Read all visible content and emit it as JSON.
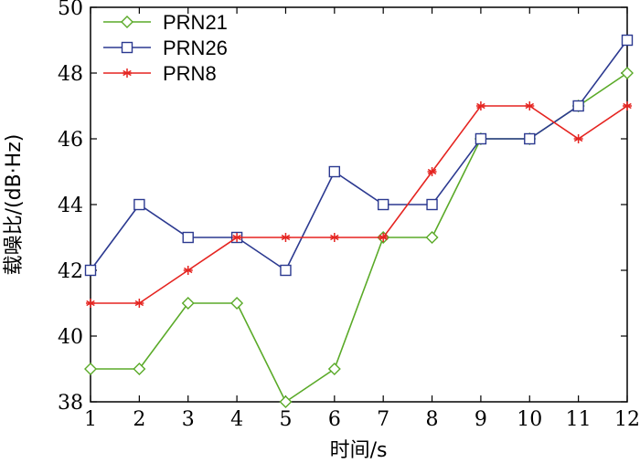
{
  "chart_data": {
    "type": "line",
    "title": "",
    "xlabel": "时间/s",
    "ylabel": "载噪比/(dB·Hz)",
    "x": [
      1,
      2,
      3,
      4,
      5,
      6,
      7,
      8,
      9,
      10,
      11,
      12
    ],
    "xlim": [
      1,
      12
    ],
    "ylim": [
      38,
      50
    ],
    "xticks": [
      "1",
      "2",
      "3",
      "4",
      "5",
      "6",
      "7",
      "8",
      "9",
      "10",
      "11",
      "12"
    ],
    "yticks": [
      "38",
      "40",
      "42",
      "44",
      "46",
      "48",
      "50"
    ],
    "grid": false,
    "legend_position": "top-left",
    "series": [
      {
        "name": "PRN21",
        "color": "#5aaa28",
        "marker": "diamond",
        "values": [
          39,
          39,
          41,
          41,
          38,
          39,
          43,
          43,
          46,
          46,
          47,
          48
        ]
      },
      {
        "name": "PRN26",
        "color": "#2b3990",
        "marker": "square",
        "values": [
          42,
          44,
          43,
          43,
          42,
          45,
          44,
          44,
          46,
          46,
          47,
          49
        ]
      },
      {
        "name": "PRN8",
        "color": "#e52420",
        "marker": "asterisk",
        "values": [
          41,
          41,
          42,
          43,
          43,
          43,
          43,
          45,
          47,
          47,
          46,
          47
        ]
      }
    ]
  }
}
